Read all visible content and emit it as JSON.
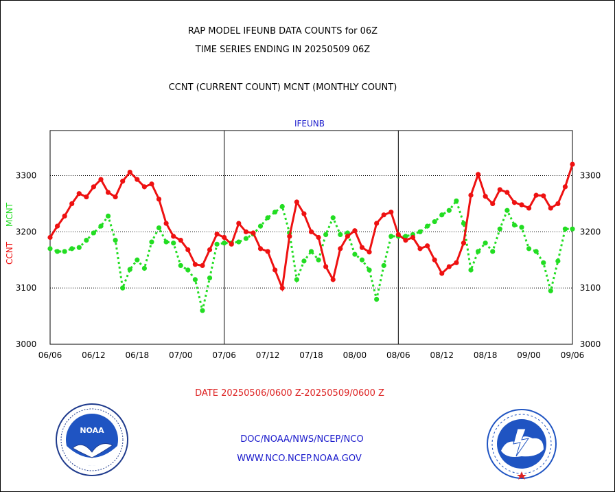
{
  "header": {
    "title_line1": "RAP MODEL IFEUNB DATA COUNTS for 06Z",
    "title_line2": "TIME SERIES ENDING IN 20250509 06Z",
    "subtitle": "CCNT (CURRENT COUNT) MCNT (MONTHLY COUNT)"
  },
  "footer": {
    "date_range": "DATE 20250506/0600 Z-20250509/0600 Z",
    "org_path": "DOC/NOAA/NWS/NCEP/NCO",
    "website": "WWW.NCO.NCEP.NOAA.GOV"
  },
  "colors": {
    "ccnt": "#ee1111",
    "mcnt": "#22dd22",
    "text_red": "#dd2222",
    "text_blue": "#1a1acc"
  },
  "logos": {
    "left": "noaa-logo",
    "right": "national-weather-service-logo"
  },
  "chart_data": {
    "type": "line",
    "title": "IFEUNB",
    "ylabel_left": [
      "CCNT",
      "MCNT"
    ],
    "ylim": [
      3000,
      3380
    ],
    "yticks": [
      3000,
      3100,
      3200,
      3300
    ],
    "xtick_labels": [
      "06/06",
      "06/12",
      "06/18",
      "07/00",
      "07/06",
      "07/12",
      "07/18",
      "08/00",
      "08/06",
      "08/12",
      "08/18",
      "09/00",
      "09/06"
    ],
    "grid": "horizontal dotted lines at 3100, 3200, 3300; vertical solid lines at 07/06 and 08/06",
    "series": [
      {
        "name": "CCNT",
        "style": "solid",
        "values": [
          3190,
          3210,
          3228,
          3250,
          3268,
          3262,
          3280,
          3293,
          3270,
          3262,
          3290,
          3306,
          3293,
          3280,
          3285,
          3258,
          3215,
          3192,
          3185,
          3168,
          3142,
          3140,
          3168,
          3196,
          3190,
          3178,
          3215,
          3200,
          3198,
          3170,
          3165,
          3132,
          3100,
          3192,
          3253,
          3232,
          3200,
          3190,
          3138,
          3115,
          3170,
          3192,
          3202,
          3172,
          3164,
          3215,
          3230,
          3235,
          3195,
          3185,
          3190,
          3170,
          3175,
          3150,
          3126,
          3138,
          3145,
          3180,
          3265,
          3302,
          3263,
          3250,
          3275,
          3270,
          3252,
          3248,
          3242,
          3265,
          3264,
          3242,
          3250,
          3280,
          3320
        ]
      },
      {
        "name": "MCNT",
        "style": "dotted",
        "values": [
          3170,
          3165,
          3165,
          3170,
          3172,
          3185,
          3198,
          3210,
          3228,
          3185,
          3100,
          3133,
          3150,
          3135,
          3182,
          3207,
          3182,
          3180,
          3140,
          3132,
          3115,
          3060,
          3118,
          3178,
          3180,
          3180,
          3182,
          3188,
          3196,
          3210,
          3225,
          3235,
          3245,
          3198,
          3115,
          3148,
          3165,
          3150,
          3195,
          3225,
          3195,
          3198,
          3160,
          3150,
          3132,
          3080,
          3140,
          3192,
          3192,
          3192,
          3195,
          3200,
          3210,
          3218,
          3230,
          3238,
          3255,
          3215,
          3132,
          3165,
          3180,
          3165,
          3205,
          3238,
          3212,
          3208,
          3170,
          3165,
          3145,
          3095,
          3148,
          3205,
          3205
        ]
      }
    ]
  }
}
